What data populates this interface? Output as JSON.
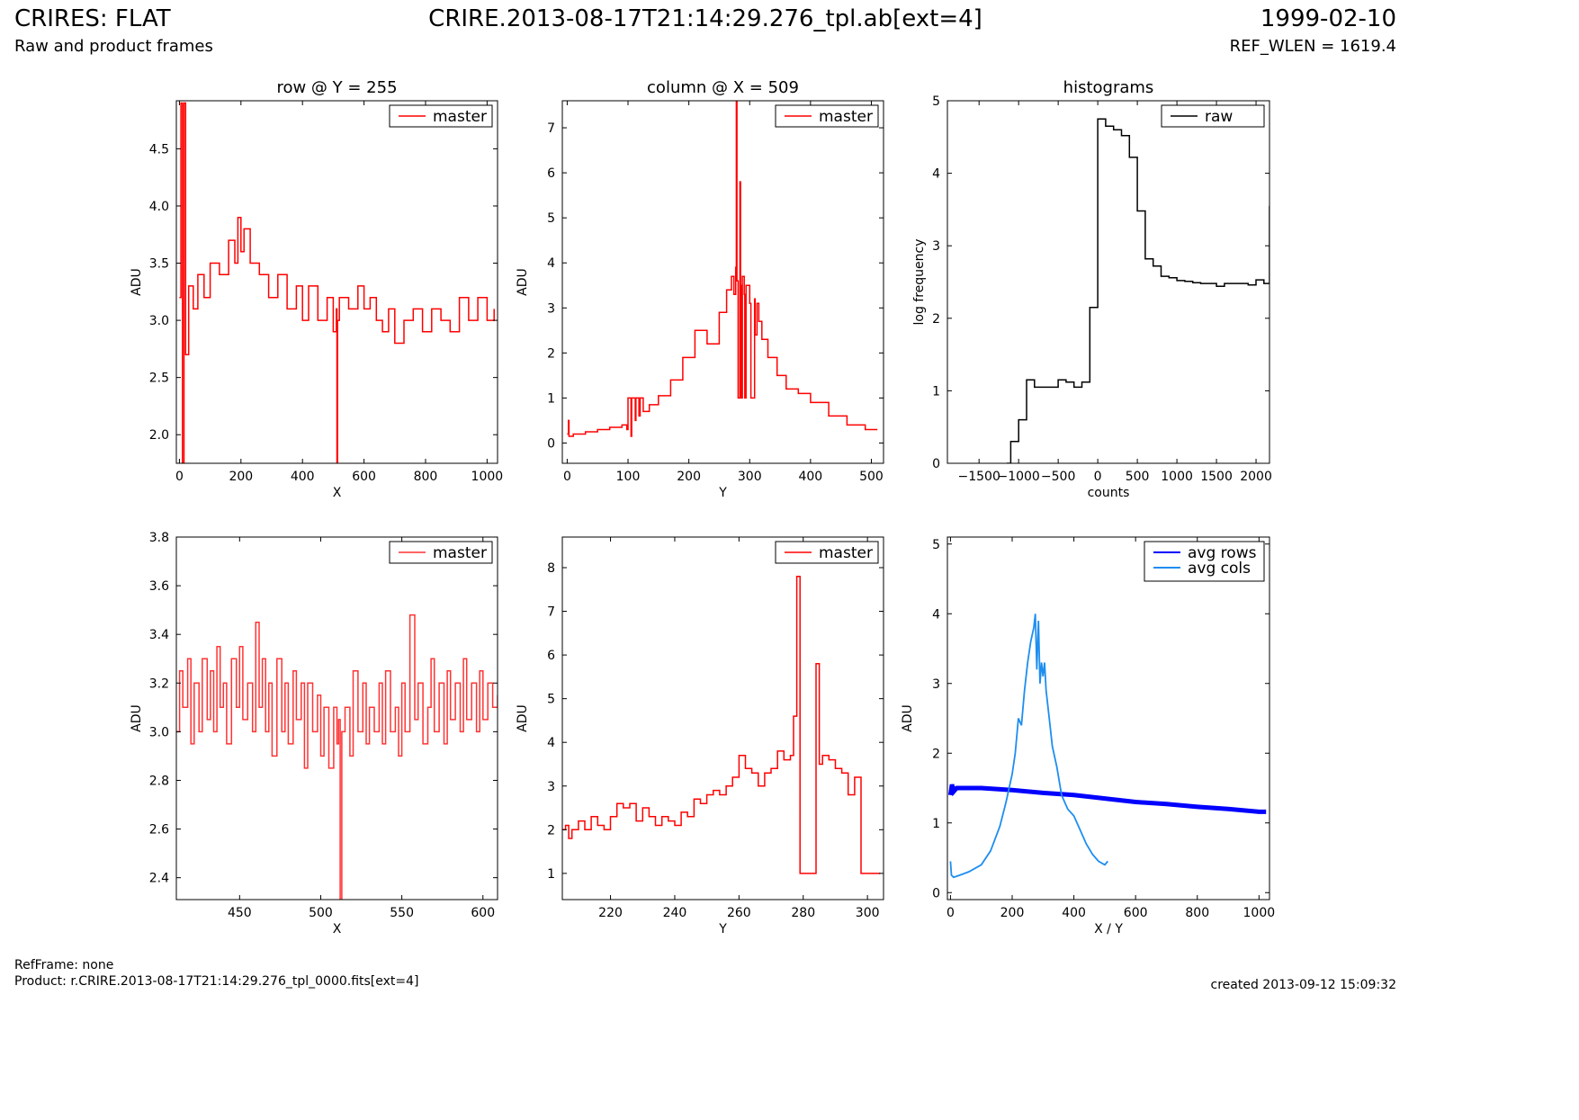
{
  "header": {
    "title_left": "CRIRES: FLAT",
    "title_center": "CRIRE.2013-08-17T21:14:29.276_tpl.ab[ext=4]",
    "title_right": "1999-02-10",
    "subtitle_left": "Raw and product frames",
    "subtitle_right": "REF_WLEN = 1619.4"
  },
  "footer": {
    "refframe": "RefFrame: none",
    "product": "Product: r.CRIRE.2013-08-17T21:14:29.276_tpl_0000.fits[ext=4]",
    "created": "created 2013-09-12 15:09:32"
  },
  "colors": {
    "red": "#ff0000",
    "light_red": "#ff3333",
    "black": "#000000",
    "blue": "#0000ff",
    "light_blue": "#1e8ef0"
  },
  "chart_data": [
    {
      "type": "line",
      "title": "row @ Y = 255",
      "xlabel": "X",
      "ylabel": "ADU",
      "xlim": [
        -10,
        1034
      ],
      "ylim": [
        1.75,
        4.92
      ],
      "xticks": [
        0,
        200,
        400,
        600,
        800,
        1000
      ],
      "yticks": [
        2.0,
        2.5,
        3.0,
        3.5,
        4.0,
        4.5
      ],
      "ytick_labels": [
        "2.0",
        "2.5",
        "3.0",
        "3.5",
        "4.0",
        "4.5"
      ],
      "legend": "top-right",
      "series": [
        {
          "name": "master",
          "color": "#ff0000",
          "step": true,
          "x": [
            0,
            5,
            10,
            15,
            20,
            30,
            45,
            60,
            80,
            100,
            130,
            160,
            180,
            190,
            200,
            210,
            230,
            260,
            290,
            320,
            350,
            380,
            400,
            420,
            450,
            480,
            500,
            510,
            512,
            514,
            520,
            550,
            580,
            600,
            620,
            640,
            660,
            680,
            700,
            730,
            760,
            790,
            820,
            850,
            880,
            910,
            940,
            970,
            1000,
            1023
          ],
          "y": [
            3.2,
            4.9,
            1.75,
            4.9,
            2.7,
            3.3,
            3.1,
            3.4,
            3.2,
            3.5,
            3.4,
            3.7,
            3.5,
            3.9,
            3.6,
            3.8,
            3.5,
            3.4,
            3.2,
            3.4,
            3.1,
            3.3,
            3.0,
            3.3,
            3.0,
            3.2,
            2.9,
            3.1,
            1.75,
            3.0,
            3.2,
            3.1,
            3.3,
            3.1,
            3.2,
            3.0,
            2.9,
            3.1,
            2.8,
            3.0,
            3.1,
            2.9,
            3.1,
            3.0,
            2.9,
            3.2,
            3.0,
            3.2,
            3.0,
            3.1
          ]
        }
      ]
    },
    {
      "type": "line",
      "title": "column @ X = 509",
      "xlabel": "Y",
      "ylabel": "ADU",
      "xlim": [
        -8,
        520
      ],
      "ylim": [
        -0.45,
        7.6
      ],
      "xticks": [
        0,
        100,
        200,
        300,
        400,
        500
      ],
      "yticks": [
        0,
        1,
        2,
        3,
        4,
        5,
        6,
        7
      ],
      "ytick_labels": [
        "0",
        "1",
        "2",
        "3",
        "4",
        "5",
        "6",
        "7"
      ],
      "legend": "top-right",
      "series": [
        {
          "name": "master",
          "color": "#ff0000",
          "step": true,
          "x": [
            0,
            2,
            3,
            10,
            30,
            50,
            70,
            90,
            98,
            100,
            105,
            106,
            112,
            113,
            118,
            120,
            125,
            135,
            150,
            170,
            190,
            210,
            230,
            250,
            262,
            270,
            274,
            277,
            278,
            279,
            281,
            284,
            285,
            286,
            288,
            291,
            292,
            294,
            300,
            302,
            308,
            309,
            312,
            315,
            320,
            330,
            345,
            360,
            380,
            400,
            430,
            460,
            490,
            510
          ],
          "y": [
            0.2,
            0.5,
            0.15,
            0.2,
            0.25,
            0.3,
            0.35,
            0.4,
            0.3,
            1.0,
            0.15,
            1.0,
            0.5,
            1.0,
            0.6,
            1.0,
            0.7,
            0.85,
            1.05,
            1.4,
            1.9,
            2.5,
            2.2,
            2.9,
            3.4,
            3.7,
            3.3,
            3.9,
            7.6,
            3.6,
            1.0,
            5.8,
            3.5,
            1.0,
            3.7,
            3.3,
            1.0,
            3.5,
            3.1,
            1.0,
            3.2,
            2.4,
            3.1,
            2.7,
            2.3,
            1.9,
            1.5,
            1.2,
            1.1,
            0.9,
            0.6,
            0.4,
            0.3,
            0.3
          ]
        }
      ]
    },
    {
      "type": "line",
      "title": "histograms",
      "xlabel": "counts",
      "ylabel": "log frequency",
      "xlim": [
        -1900,
        2170
      ],
      "ylim": [
        0,
        5
      ],
      "xticks": [
        -1500,
        -1000,
        -500,
        0,
        500,
        1000,
        1500,
        2000
      ],
      "xtick_labels": [
        "−1500",
        "−1000",
        "−500",
        "0",
        "500",
        "1000",
        "1500",
        "2000"
      ],
      "yticks": [
        0,
        1,
        2,
        3,
        4,
        5
      ],
      "ytick_labels": [
        "0",
        "1",
        "2",
        "3",
        "4",
        "5"
      ],
      "legend": "top-right",
      "series": [
        {
          "name": "raw",
          "color": "#000000",
          "step": true,
          "x": [
            -1150,
            -1100,
            -1000,
            -900,
            -800,
            -700,
            -600,
            -500,
            -400,
            -300,
            -200,
            -100,
            0,
            100,
            200,
            300,
            400,
            500,
            600,
            700,
            800,
            900,
            1000,
            1100,
            1200,
            1300,
            1400,
            1500,
            1600,
            1700,
            1800,
            1900,
            2000,
            2100,
            2170
          ],
          "y": [
            0,
            0.3,
            0.6,
            1.15,
            1.05,
            1.05,
            1.05,
            1.15,
            1.12,
            1.05,
            1.12,
            2.15,
            4.75,
            4.65,
            4.6,
            4.52,
            4.22,
            3.48,
            2.82,
            2.72,
            2.58,
            2.56,
            2.52,
            2.51,
            2.49,
            2.48,
            2.48,
            2.44,
            2.48,
            2.48,
            2.48,
            2.46,
            2.53,
            2.48,
            3.55
          ]
        }
      ]
    },
    {
      "type": "line",
      "xlabel": "X",
      "ylabel": "ADU",
      "xlim": [
        411,
        609
      ],
      "ylim": [
        2.31,
        3.8
      ],
      "xticks": [
        450,
        500,
        550,
        600
      ],
      "yticks": [
        2.4,
        2.6,
        2.8,
        3.0,
        3.2,
        3.4,
        3.6,
        3.8
      ],
      "ytick_labels": [
        "2.4",
        "2.6",
        "2.8",
        "3.0",
        "3.2",
        "3.4",
        "3.6",
        "3.8"
      ],
      "legend": "top-right",
      "series": [
        {
          "name": "master",
          "color": "#ff3333",
          "step": true,
          "x": [
            411,
            413,
            415,
            418,
            420,
            422,
            425,
            427,
            430,
            432,
            434,
            436,
            438,
            440,
            442,
            445,
            448,
            450,
            452,
            455,
            458,
            460,
            462,
            464,
            466,
            468,
            470,
            473,
            476,
            478,
            480,
            483,
            485,
            488,
            490,
            492,
            495,
            498,
            500,
            502,
            505,
            508,
            510,
            511,
            512,
            513,
            515,
            518,
            520,
            523,
            526,
            528,
            530,
            533,
            536,
            538,
            540,
            543,
            546,
            548,
            550,
            552,
            555,
            558,
            560,
            563,
            566,
            568,
            570,
            573,
            576,
            578,
            580,
            583,
            586,
            588,
            590,
            593,
            596,
            598,
            600,
            603,
            606,
            609
          ],
          "y": [
            3.0,
            3.25,
            3.1,
            3.3,
            2.95,
            3.2,
            3.0,
            3.3,
            3.05,
            3.25,
            3.0,
            3.35,
            3.1,
            3.2,
            2.95,
            3.3,
            3.1,
            3.35,
            3.05,
            3.2,
            3.0,
            3.45,
            3.1,
            3.3,
            3.0,
            3.2,
            2.9,
            3.3,
            3.0,
            3.2,
            2.95,
            3.25,
            3.05,
            3.2,
            2.85,
            3.2,
            3.0,
            3.15,
            2.9,
            3.1,
            2.85,
            3.1,
            2.95,
            3.05,
            2.3,
            3.0,
            3.1,
            2.9,
            3.25,
            3.0,
            3.2,
            2.95,
            3.1,
            3.0,
            3.2,
            2.95,
            3.25,
            3.0,
            3.1,
            2.9,
            3.2,
            3.0,
            3.48,
            3.05,
            3.2,
            2.95,
            3.1,
            3.3,
            3.0,
            3.2,
            2.95,
            3.25,
            3.05,
            3.2,
            3.0,
            3.3,
            3.05,
            3.2,
            3.0,
            3.25,
            3.05,
            3.2,
            3.1,
            3.15
          ]
        }
      ]
    },
    {
      "type": "line",
      "xlabel": "Y",
      "ylabel": "ADU",
      "xlim": [
        205,
        305
      ],
      "ylim": [
        0.4,
        8.7
      ],
      "xticks": [
        220,
        240,
        260,
        280,
        300
      ],
      "yticks": [
        1,
        2,
        3,
        4,
        5,
        6,
        7,
        8
      ],
      "ytick_labels": [
        "1",
        "2",
        "3",
        "4",
        "5",
        "6",
        "7",
        "8"
      ],
      "legend": "top-right",
      "series": [
        {
          "name": "master",
          "color": "#ff0000",
          "step": true,
          "x": [
            205,
            206,
            207,
            208,
            210,
            212,
            214,
            216,
            218,
            220,
            222,
            224,
            226,
            228,
            230,
            232,
            234,
            236,
            238,
            240,
            242,
            244,
            246,
            248,
            250,
            252,
            254,
            256,
            258,
            260,
            262,
            264,
            266,
            268,
            270,
            272,
            274,
            276,
            277,
            278,
            279,
            280,
            284,
            285,
            286,
            288,
            290,
            292,
            294,
            296,
            298,
            304
          ],
          "y": [
            2.0,
            2.1,
            1.8,
            2.0,
            2.2,
            2.0,
            2.3,
            2.1,
            2.0,
            2.3,
            2.6,
            2.5,
            2.6,
            2.2,
            2.5,
            2.3,
            2.1,
            2.3,
            2.2,
            2.1,
            2.4,
            2.3,
            2.7,
            2.6,
            2.8,
            2.9,
            2.8,
            3.0,
            3.2,
            3.7,
            3.4,
            3.3,
            3.0,
            3.3,
            3.4,
            3.8,
            3.6,
            3.7,
            4.6,
            7.8,
            1.0,
            1.0,
            5.8,
            3.5,
            3.7,
            3.6,
            3.4,
            3.3,
            2.8,
            3.2,
            1.0,
            1.0
          ]
        }
      ]
    },
    {
      "type": "line",
      "xlabel": "X / Y",
      "ylabel": "ADU",
      "xlim": [
        -10,
        1034
      ],
      "ylim": [
        -0.1,
        5.1
      ],
      "xticks": [
        0,
        200,
        400,
        600,
        800,
        1000
      ],
      "yticks": [
        0,
        1,
        2,
        3,
        4,
        5
      ],
      "ytick_labels": [
        "0",
        "1",
        "2",
        "3",
        "4",
        "5"
      ],
      "legend": "top-left-inset",
      "series": [
        {
          "name": "avg rows",
          "color": "#0000ff",
          "step": false,
          "width": 5,
          "x": [
            0,
            5,
            10,
            20,
            50,
            100,
            200,
            300,
            400,
            500,
            600,
            700,
            800,
            900,
            1000,
            1023
          ],
          "y": [
            1.4,
            1.55,
            1.45,
            1.5,
            1.5,
            1.5,
            1.47,
            1.43,
            1.4,
            1.35,
            1.3,
            1.27,
            1.23,
            1.2,
            1.16,
            1.16
          ]
        },
        {
          "name": "avg cols",
          "color": "#1e8ef0",
          "step": false,
          "width": 1.8,
          "x": [
            0,
            3,
            10,
            30,
            60,
            100,
            130,
            160,
            180,
            200,
            210,
            220,
            230,
            240,
            250,
            260,
            270,
            275,
            280,
            285,
            290,
            295,
            300,
            305,
            310,
            320,
            330,
            345,
            360,
            380,
            400,
            420,
            440,
            460,
            480,
            500,
            510
          ],
          "y": [
            0.45,
            0.25,
            0.22,
            0.25,
            0.3,
            0.4,
            0.6,
            0.95,
            1.3,
            1.7,
            2.0,
            2.5,
            2.4,
            2.9,
            3.3,
            3.6,
            3.8,
            4.0,
            3.2,
            3.9,
            3.0,
            3.3,
            3.1,
            3.3,
            2.9,
            2.5,
            2.1,
            1.8,
            1.4,
            1.2,
            1.1,
            0.9,
            0.7,
            0.55,
            0.45,
            0.4,
            0.45
          ]
        }
      ]
    }
  ]
}
